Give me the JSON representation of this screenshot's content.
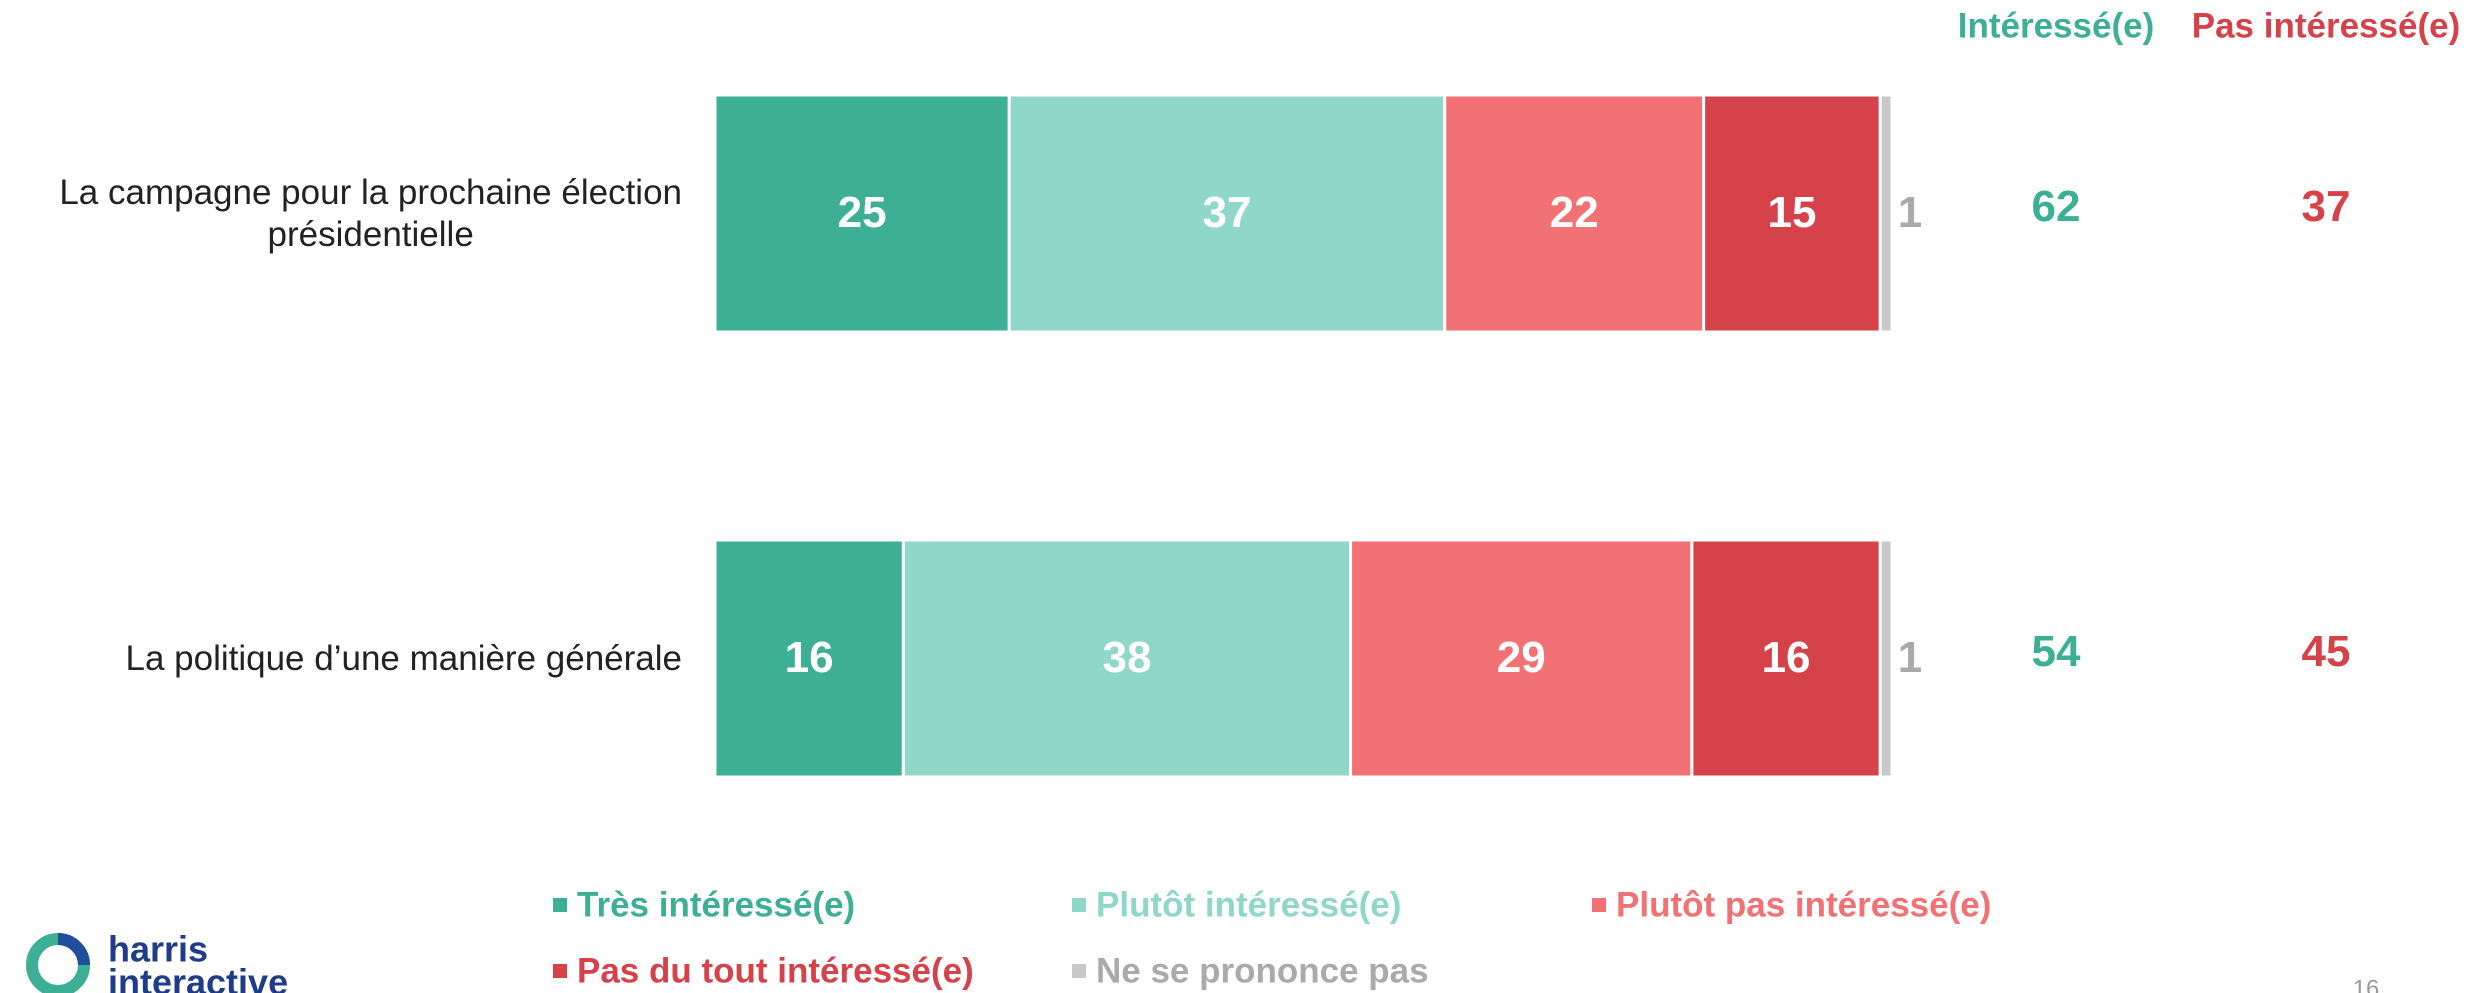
{
  "chart_data": {
    "type": "stacked_bar_horizontal",
    "categories": [
      "La campagne pour la prochaine élection\nprésidentielle",
      "La politique d’une manière générale"
    ],
    "series": [
      {
        "name": "Très intéressé(e)",
        "color": "#3daf95",
        "values": [
          25,
          16
        ]
      },
      {
        "name": "Plutôt intéressé(e)",
        "color": "#8fd7c9",
        "values": [
          37,
          38
        ]
      },
      {
        "name": "Plutôt pas intéressé(e)",
        "color": "#f27174",
        "values": [
          22,
          29
        ]
      },
      {
        "name": "Pas du tout intéressé(e)",
        "color": "#d6424a",
        "values": [
          15,
          16
        ]
      },
      {
        "name": "Ne se prononce pas",
        "color": "#c8c8c8",
        "label_color": "#aaaaaa",
        "values": [
          1,
          1
        ]
      }
    ],
    "net_series": [
      {
        "name": "Intéressé(e)",
        "color": "#3daf95",
        "values": [
          62,
          54
        ]
      },
      {
        "name": "Pas intéressé(e)",
        "color": "#d6424a",
        "values": [
          37,
          45
        ]
      }
    ]
  },
  "logo": {
    "line1": "harris",
    "line2": "interactive"
  },
  "page_number": "16"
}
